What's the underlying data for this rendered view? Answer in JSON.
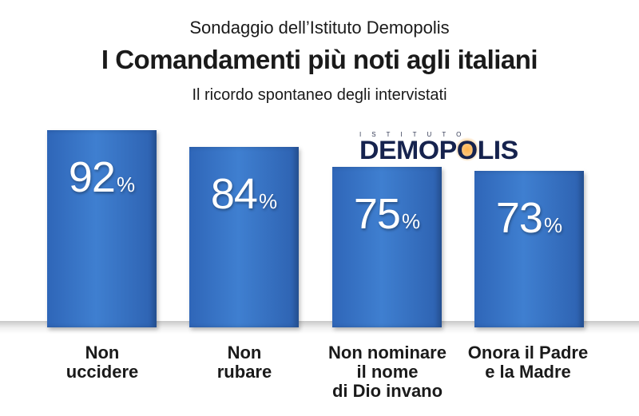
{
  "header": {
    "source": "Sondaggio dell’Istituto Demopolis",
    "title": "I Comandamenti più noti agli italiani",
    "subtitle": "Il ricordo spontaneo degli intervistati"
  },
  "logo": {
    "top_text": "ISTITUTO",
    "main_text": "DEMOPOLIS"
  },
  "colors": {
    "bar": "#3274c4",
    "logo": "#16234e",
    "text": "#1a1a1a"
  },
  "chart_data": {
    "type": "bar",
    "title": "I Comandamenti più noti agli italiani",
    "subtitle": "Il ricordo spontaneo degli intervistati",
    "categories": [
      "Non\nuccidere",
      "Non\nrubare",
      "Non nominare\nil nome\ndi Dio invano",
      "Onora il Padre\ne la Madre"
    ],
    "values": [
      92,
      84,
      75,
      73
    ],
    "value_suffix": "%",
    "ylim": [
      0,
      100
    ],
    "grid": false
  }
}
